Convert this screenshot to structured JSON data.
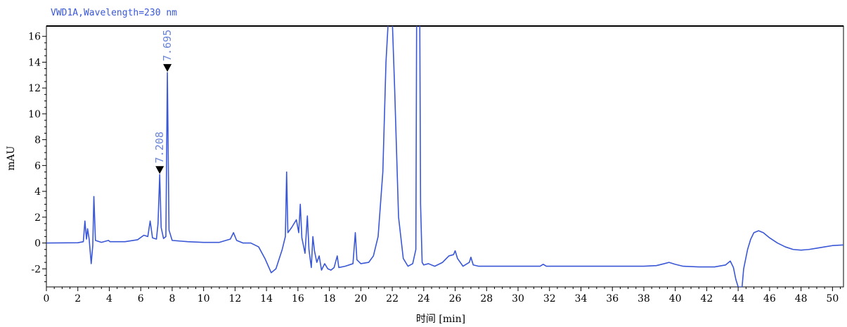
{
  "chart_data": {
    "type": "line",
    "title": "VWD1A,Wavelength=230 nm",
    "xlabel": "时间 [min]",
    "ylabel": "mAU",
    "xlim": [
      0,
      50.7
    ],
    "ylim": [
      -3.4,
      16.8
    ],
    "x_ticks": [
      0,
      2,
      4,
      6,
      8,
      10,
      12,
      14,
      16,
      18,
      20,
      22,
      24,
      26,
      28,
      30,
      32,
      34,
      36,
      38,
      40,
      42,
      44,
      46,
      48,
      50
    ],
    "y_ticks": [
      -2,
      0,
      2,
      4,
      6,
      8,
      10,
      12,
      14,
      16
    ],
    "colors": {
      "trace": "#3a57d6",
      "peak_label": "#6b86d8",
      "title": "#3a57d6",
      "axes": "#000000"
    },
    "series": [
      {
        "values": [
          [
            0,
            0
          ],
          [
            2.0,
            0.02
          ],
          [
            2.35,
            0.1
          ],
          [
            2.45,
            1.7
          ],
          [
            2.55,
            0.3
          ],
          [
            2.62,
            1.1
          ],
          [
            2.72,
            0.3
          ],
          [
            2.85,
            -1.6
          ],
          [
            2.95,
            -0.2
          ],
          [
            3.02,
            3.6
          ],
          [
            3.12,
            0.2
          ],
          [
            3.5,
            0.05
          ],
          [
            3.95,
            0.2
          ],
          [
            4.05,
            0.1
          ],
          [
            5.0,
            0.1
          ],
          [
            5.8,
            0.25
          ],
          [
            6.2,
            0.6
          ],
          [
            6.45,
            0.5
          ],
          [
            6.6,
            1.7
          ],
          [
            6.75,
            0.4
          ],
          [
            7.0,
            0.3
          ],
          [
            7.1,
            1.5
          ],
          [
            7.208,
            5.3
          ],
          [
            7.3,
            1.2
          ],
          [
            7.45,
            0.35
          ],
          [
            7.6,
            0.5
          ],
          [
            7.695,
            13.2
          ],
          [
            7.8,
            1.0
          ],
          [
            8.0,
            0.2
          ],
          [
            9.0,
            0.1
          ],
          [
            10.0,
            0.05
          ],
          [
            11.0,
            0.05
          ],
          [
            11.7,
            0.3
          ],
          [
            11.9,
            0.8
          ],
          [
            12.1,
            0.2
          ],
          [
            12.5,
            0.0
          ],
          [
            13.0,
            0.0
          ],
          [
            13.5,
            -0.3
          ],
          [
            13.9,
            -1.2
          ],
          [
            14.3,
            -2.3
          ],
          [
            14.6,
            -2.0
          ],
          [
            15.0,
            -0.5
          ],
          [
            15.2,
            0.5
          ],
          [
            15.28,
            5.5
          ],
          [
            15.36,
            0.8
          ],
          [
            15.6,
            1.2
          ],
          [
            15.9,
            1.8
          ],
          [
            16.05,
            0.8
          ],
          [
            16.15,
            3.0
          ],
          [
            16.25,
            0.4
          ],
          [
            16.45,
            -0.8
          ],
          [
            16.6,
            2.1
          ],
          [
            16.7,
            -0.5
          ],
          [
            16.85,
            -1.9
          ],
          [
            16.95,
            0.5
          ],
          [
            17.05,
            -0.6
          ],
          [
            17.2,
            -1.5
          ],
          [
            17.35,
            -1.0
          ],
          [
            17.5,
            -2.1
          ],
          [
            17.7,
            -1.6
          ],
          [
            17.9,
            -2.0
          ],
          [
            18.1,
            -2.1
          ],
          [
            18.3,
            -1.9
          ],
          [
            18.5,
            -1.0
          ],
          [
            18.6,
            -1.9
          ],
          [
            19.0,
            -1.8
          ],
          [
            19.5,
            -1.6
          ],
          [
            19.65,
            0.8
          ],
          [
            19.75,
            -1.3
          ],
          [
            20.0,
            -1.6
          ],
          [
            20.5,
            -1.5
          ],
          [
            20.8,
            -1.0
          ],
          [
            21.1,
            0.5
          ],
          [
            21.4,
            5.5
          ],
          [
            21.6,
            14.0
          ],
          [
            21.75,
            17.3
          ],
          [
            22.0,
            17.3
          ],
          [
            22.15,
            12.0
          ],
          [
            22.4,
            2.0
          ],
          [
            22.7,
            -1.2
          ],
          [
            23.0,
            -1.8
          ],
          [
            23.3,
            -1.6
          ],
          [
            23.5,
            -0.5
          ],
          [
            23.55,
            17.3
          ],
          [
            23.75,
            17.3
          ],
          [
            23.8,
            3.0
          ],
          [
            23.9,
            -1.5
          ],
          [
            24.0,
            -1.7
          ],
          [
            24.3,
            -1.6
          ],
          [
            24.7,
            -1.8
          ],
          [
            25.2,
            -1.5
          ],
          [
            25.6,
            -1.0
          ],
          [
            25.9,
            -0.9
          ],
          [
            26.0,
            -0.6
          ],
          [
            26.15,
            -1.2
          ],
          [
            26.5,
            -1.8
          ],
          [
            26.9,
            -1.5
          ],
          [
            27.0,
            -1.1
          ],
          [
            27.15,
            -1.7
          ],
          [
            27.5,
            -1.8
          ],
          [
            28.0,
            -1.8
          ],
          [
            30.0,
            -1.8
          ],
          [
            31.4,
            -1.8
          ],
          [
            31.6,
            -1.65
          ],
          [
            31.8,
            -1.8
          ],
          [
            34.0,
            -1.8
          ],
          [
            36.0,
            -1.8
          ],
          [
            38.0,
            -1.8
          ],
          [
            38.8,
            -1.75
          ],
          [
            39.3,
            -1.6
          ],
          [
            39.6,
            -1.5
          ],
          [
            40.0,
            -1.65
          ],
          [
            40.5,
            -1.8
          ],
          [
            41.5,
            -1.85
          ],
          [
            42.5,
            -1.85
          ],
          [
            43.2,
            -1.7
          ],
          [
            43.5,
            -1.4
          ],
          [
            43.7,
            -1.9
          ],
          [
            43.85,
            -2.8
          ],
          [
            44.0,
            -3.4
          ],
          [
            44.25,
            -3.4
          ],
          [
            44.35,
            -2.0
          ],
          [
            44.6,
            -0.5
          ],
          [
            44.8,
            0.3
          ],
          [
            45.0,
            0.8
          ],
          [
            45.3,
            0.95
          ],
          [
            45.6,
            0.8
          ],
          [
            46.0,
            0.4
          ],
          [
            46.5,
            0.0
          ],
          [
            47.0,
            -0.3
          ],
          [
            47.5,
            -0.5
          ],
          [
            48.0,
            -0.55
          ],
          [
            48.5,
            -0.5
          ],
          [
            49.0,
            -0.4
          ],
          [
            49.5,
            -0.3
          ],
          [
            50.0,
            -0.2
          ],
          [
            50.7,
            -0.15
          ]
        ]
      }
    ],
    "peaks": [
      {
        "rt": 7.208,
        "height": 5.3,
        "label": "7.208"
      },
      {
        "rt": 7.695,
        "height": 13.2,
        "label": "7.695"
      }
    ],
    "grid": false
  }
}
